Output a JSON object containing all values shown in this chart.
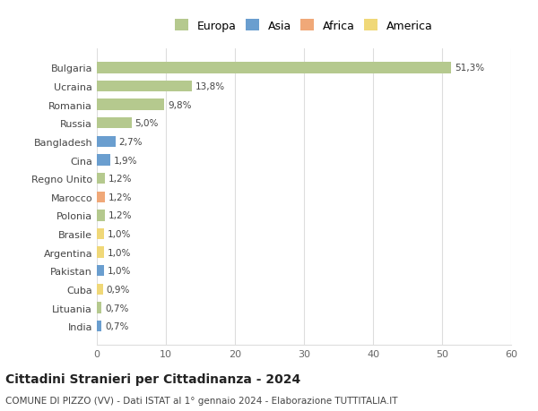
{
  "categories": [
    "Bulgaria",
    "Ucraina",
    "Romania",
    "Russia",
    "Bangladesh",
    "Cina",
    "Regno Unito",
    "Marocco",
    "Polonia",
    "Brasile",
    "Argentina",
    "Pakistan",
    "Cuba",
    "Lituania",
    "India"
  ],
  "values": [
    51.3,
    13.8,
    9.8,
    5.0,
    2.7,
    1.9,
    1.2,
    1.2,
    1.2,
    1.0,
    1.0,
    1.0,
    0.9,
    0.7,
    0.7
  ],
  "labels": [
    "51,3%",
    "13,8%",
    "9,8%",
    "5,0%",
    "2,7%",
    "1,9%",
    "1,2%",
    "1,2%",
    "1,2%",
    "1,0%",
    "1,0%",
    "1,0%",
    "0,9%",
    "0,7%",
    "0,7%"
  ],
  "colors": [
    "#b5c98e",
    "#b5c98e",
    "#b5c98e",
    "#b5c98e",
    "#6a9ecf",
    "#6a9ecf",
    "#b5c98e",
    "#f0a878",
    "#b5c98e",
    "#f0d878",
    "#f0d878",
    "#6a9ecf",
    "#f0d878",
    "#b5c98e",
    "#6a9ecf"
  ],
  "legend_labels": [
    "Europa",
    "Asia",
    "Africa",
    "America"
  ],
  "legend_colors": [
    "#b5c98e",
    "#6a9ecf",
    "#f0a878",
    "#f0d878"
  ],
  "title": "Cittadini Stranieri per Cittadinanza - 2024",
  "subtitle": "COMUNE DI PIZZO (VV) - Dati ISTAT al 1° gennaio 2024 - Elaborazione TUTTITALIA.IT",
  "xlim": [
    0,
    60
  ],
  "xticks": [
    0,
    10,
    20,
    30,
    40,
    50,
    60
  ],
  "background_color": "#ffffff",
  "grid_color": "#dddddd",
  "bar_height": 0.6
}
